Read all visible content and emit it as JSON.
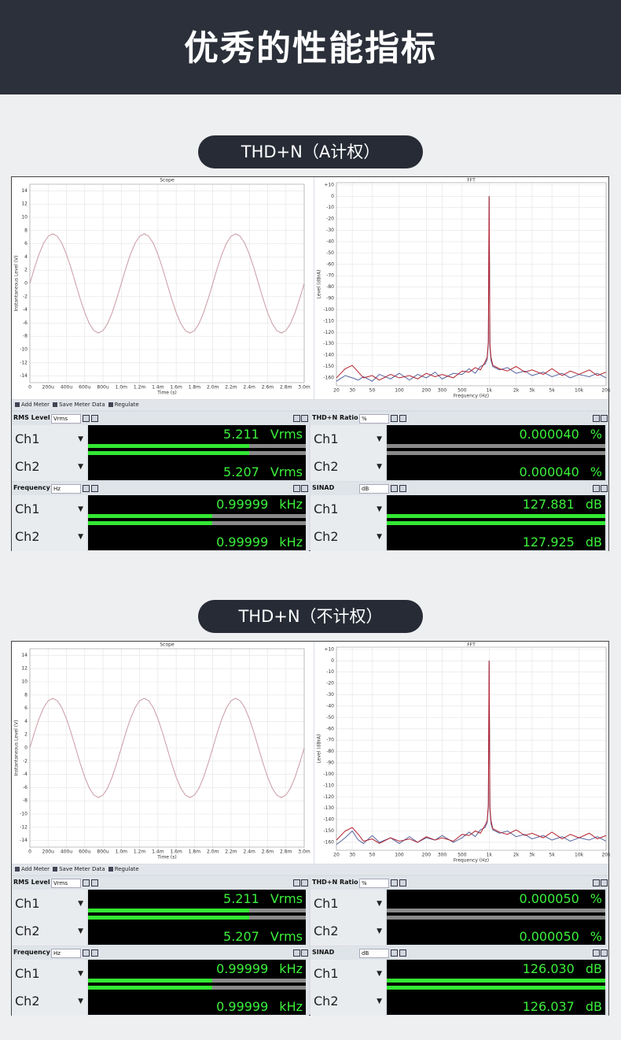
{
  "header": {
    "title": "优秀的性能指标"
  },
  "sections": [
    {
      "badge": "THD+N（A计权）",
      "scope": {
        "title": "Scope",
        "x_label": "Time (s)",
        "y_label": "Instantaneous Level (V)",
        "grid": true,
        "color": "#c99aa3",
        "xlim": [
          0,
          0.003
        ],
        "ylim": [
          -15,
          15
        ],
        "yticks": [
          14,
          12,
          10,
          8,
          6,
          4,
          2,
          0,
          -2,
          -4,
          -6,
          -8,
          -10,
          -12,
          -14
        ],
        "xticks": [
          0,
          {
            "value": 0.0002,
            "label": "200u"
          },
          {
            "value": 0.0004,
            "label": "400u"
          },
          {
            "value": 0.0006,
            "label": "600u"
          },
          {
            "value": 0.0008,
            "label": "800u"
          },
          {
            "value": 0.001,
            "label": "1.0m"
          },
          {
            "value": 0.0012,
            "label": "1.2m"
          },
          {
            "value": 0.0014,
            "label": "1.4m"
          },
          {
            "value": 0.0016,
            "label": "1.6m"
          },
          {
            "value": 0.0018,
            "label": "1.8m"
          },
          {
            "value": 0.002,
            "label": "2.0m"
          },
          {
            "value": 0.0022,
            "label": "2.2m"
          },
          {
            "value": 0.0024,
            "label": "2.4m"
          },
          {
            "value": 0.0026,
            "label": "2.6m"
          },
          {
            "value": 0.0028,
            "label": "2.8m"
          },
          {
            "value": 0.003,
            "label": "3.0m"
          }
        ],
        "x": [
          0,
          5e-05,
          0.0001,
          0.00015,
          0.0002,
          0.00025,
          0.0003,
          0.00035,
          0.0004,
          0.00045,
          0.0005,
          0.00055,
          0.0006,
          0.00065,
          0.0007,
          0.00075,
          0.0008,
          0.00085,
          0.0009,
          0.00095,
          0.001,
          0.00105,
          0.0011,
          0.00115,
          0.0012,
          0.00125,
          0.0013,
          0.00135,
          0.0014,
          0.00145,
          0.0015,
          0.00155,
          0.0016,
          0.00165,
          0.0017,
          0.00175,
          0.0018,
          0.00185,
          0.0019,
          0.00195,
          0.002,
          0.00205,
          0.0021,
          0.00215,
          0.0022,
          0.00225,
          0.0023,
          0.00235,
          0.0024,
          0.00245,
          0.0025,
          0.00255,
          0.0026,
          0.00265,
          0.0027,
          0.00275,
          0.0028,
          0.00285,
          0.0029,
          0.00295,
          0.003
        ],
        "values": [
          0,
          2.32,
          4.41,
          6.07,
          7.13,
          7.5,
          7.13,
          6.07,
          4.41,
          2.32,
          0,
          -2.32,
          -4.41,
          -6.07,
          -7.13,
          -7.5,
          -7.13,
          -6.07,
          -4.41,
          -2.32,
          0,
          2.32,
          4.41,
          6.07,
          7.13,
          7.5,
          7.13,
          6.07,
          4.41,
          2.32,
          0,
          -2.32,
          -4.41,
          -6.07,
          -7.13,
          -7.5,
          -7.13,
          -6.07,
          -4.41,
          -2.32,
          0,
          2.32,
          4.41,
          6.07,
          7.13,
          7.5,
          7.13,
          6.07,
          4.41,
          2.32,
          0,
          -2.32,
          -4.41,
          -6.07,
          -7.13,
          -7.5,
          -7.13,
          -6.07,
          -4.41,
          -2.32,
          0
        ]
      },
      "fft": {
        "title": "FFT",
        "x_label": "Frequency (Hz)",
        "y_label": "Level (dBrA)",
        "grid": true,
        "log_x": true,
        "xlim": [
          20,
          20000
        ],
        "ylim": [
          -167,
          12
        ],
        "yticks": [
          {
            "value": 10,
            "label": "+10"
          },
          0,
          -10,
          -20,
          -30,
          -40,
          -50,
          -60,
          -70,
          -80,
          -90,
          -100,
          -110,
          -120,
          -130,
          -140,
          -150,
          -160
        ],
        "xticks": [
          20,
          30,
          50,
          100,
          200,
          300,
          500,
          {
            "value": 1000,
            "label": "1k"
          },
          {
            "value": 2000,
            "label": "2k"
          },
          {
            "value": 3000,
            "label": "3k"
          },
          {
            "value": 5000,
            "label": "5k"
          },
          {
            "value": 10000,
            "label": "10k"
          },
          {
            "value": 20000,
            "label": "20k"
          }
        ],
        "x": [
          20,
          25,
          30,
          35,
          40,
          50,
          60,
          80,
          100,
          130,
          160,
          200,
          250,
          300,
          400,
          500,
          600,
          700,
          800,
          900,
          950,
          980,
          1000,
          1020,
          1050,
          1100,
          1300,
          1600,
          2000,
          2500,
          3000,
          4000,
          5000,
          6500,
          8000,
          10000,
          13000,
          16000,
          20000
        ],
        "series": [
          {
            "color": "#5565a0",
            "values": [
              -163,
              -158,
              -160,
              -162,
              -159,
              -163,
              -157,
              -161,
              -156,
              -162,
              -157,
              -160,
              -155,
              -161,
              -156,
              -157,
              -152,
              -156,
              -150,
              -148,
              -144,
              -130,
              0,
              -132,
              -145,
              -150,
              -153,
              -151,
              -156,
              -154,
              -158,
              -155,
              -159,
              -156,
              -160,
              -157,
              -159,
              -156,
              -160
            ]
          },
          {
            "color": "#b3212e",
            "values": [
              -160,
              -152,
              -149,
              -155,
              -160,
              -158,
              -162,
              -157,
              -160,
              -158,
              -161,
              -156,
              -159,
              -157,
              -160,
              -154,
              -155,
              -151,
              -153,
              -146,
              -142,
              -128,
              0,
              -130,
              -142,
              -149,
              -152,
              -154,
              -150,
              -155,
              -153,
              -157,
              -152,
              -158,
              -154,
              -157,
              -153,
              -158,
              -155
            ]
          }
        ]
      },
      "toolbar": [
        "Add Meter",
        "Save Meter Data",
        "Regulate"
      ],
      "meters": [
        {
          "name": "RMS Level",
          "unit_select": "Vrms",
          "channels": [
            "Ch1",
            "Ch2"
          ],
          "readings": [
            "5.211",
            "5.207"
          ],
          "unit": "Vrms"
        },
        {
          "name": "THD+N Ratio",
          "unit_select": "%",
          "channels": [
            "Ch1",
            "Ch2"
          ],
          "readings": [
            "0.000040",
            "0.000040"
          ],
          "unit": "%"
        },
        {
          "name": "Frequency",
          "unit_select": "Hz",
          "channels": [
            "Ch1",
            "Ch2"
          ],
          "readings": [
            "0.99999",
            "0.99999"
          ],
          "unit": "kHz"
        },
        {
          "name": "SINAD",
          "unit_select": "dB",
          "channels": [
            "Ch1",
            "Ch2"
          ],
          "readings": [
            "127.881",
            "127.925"
          ],
          "unit": "dB"
        }
      ]
    },
    {
      "badge": "THD+N（不计权）",
      "scope": {
        "title": "Scope",
        "x_label": "Time (s)",
        "y_label": "Instantaneous Level (V)",
        "grid": true,
        "color": "#c99aa3",
        "xlim": [
          0,
          0.003
        ],
        "ylim": [
          -15,
          15
        ],
        "yticks": [
          14,
          12,
          10,
          8,
          6,
          4,
          2,
          0,
          -2,
          -4,
          -6,
          -8,
          -10,
          -12,
          -14
        ],
        "xticks": [
          0,
          {
            "value": 0.0002,
            "label": "200u"
          },
          {
            "value": 0.0004,
            "label": "400u"
          },
          {
            "value": 0.0006,
            "label": "600u"
          },
          {
            "value": 0.0008,
            "label": "800u"
          },
          {
            "value": 0.001,
            "label": "1.0m"
          },
          {
            "value": 0.0012,
            "label": "1.2m"
          },
          {
            "value": 0.0014,
            "label": "1.4m"
          },
          {
            "value": 0.0016,
            "label": "1.6m"
          },
          {
            "value": 0.0018,
            "label": "1.8m"
          },
          {
            "value": 0.002,
            "label": "2.0m"
          },
          {
            "value": 0.0022,
            "label": "2.2m"
          },
          {
            "value": 0.0024,
            "label": "2.4m"
          },
          {
            "value": 0.0026,
            "label": "2.6m"
          },
          {
            "value": 0.0028,
            "label": "2.8m"
          },
          {
            "value": 0.003,
            "label": "3.0m"
          }
        ],
        "x": [
          0,
          5e-05,
          0.0001,
          0.00015,
          0.0002,
          0.00025,
          0.0003,
          0.00035,
          0.0004,
          0.00045,
          0.0005,
          0.00055,
          0.0006,
          0.00065,
          0.0007,
          0.00075,
          0.0008,
          0.00085,
          0.0009,
          0.00095,
          0.001,
          0.00105,
          0.0011,
          0.00115,
          0.0012,
          0.00125,
          0.0013,
          0.00135,
          0.0014,
          0.00145,
          0.0015,
          0.00155,
          0.0016,
          0.00165,
          0.0017,
          0.00175,
          0.0018,
          0.00185,
          0.0019,
          0.00195,
          0.002,
          0.00205,
          0.0021,
          0.00215,
          0.0022,
          0.00225,
          0.0023,
          0.00235,
          0.0024,
          0.00245,
          0.0025,
          0.00255,
          0.0026,
          0.00265,
          0.0027,
          0.00275,
          0.0028,
          0.00285,
          0.0029,
          0.00295,
          0.003
        ],
        "values": [
          0,
          2.32,
          4.41,
          6.07,
          7.13,
          7.5,
          7.13,
          6.07,
          4.41,
          2.32,
          0,
          -2.32,
          -4.41,
          -6.07,
          -7.13,
          -7.5,
          -7.13,
          -6.07,
          -4.41,
          -2.32,
          0,
          2.32,
          4.41,
          6.07,
          7.13,
          7.5,
          7.13,
          6.07,
          4.41,
          2.32,
          0,
          -2.32,
          -4.41,
          -6.07,
          -7.13,
          -7.5,
          -7.13,
          -6.07,
          -4.41,
          -2.32,
          0,
          2.32,
          4.41,
          6.07,
          7.13,
          7.5,
          7.13,
          6.07,
          4.41,
          2.32,
          0,
          -2.32,
          -4.41,
          -6.07,
          -7.13,
          -7.5,
          -7.13,
          -6.07,
          -4.41,
          -2.32,
          0
        ]
      },
      "fft": {
        "title": "FFT",
        "x_label": "Frequency (Hz)",
        "y_label": "Level (dBrA)",
        "grid": true,
        "log_x": true,
        "xlim": [
          20,
          20000
        ],
        "ylim": [
          -167,
          12
        ],
        "yticks": [
          {
            "value": 10,
            "label": "+10"
          },
          0,
          -10,
          -20,
          -30,
          -40,
          -50,
          -60,
          -70,
          -80,
          -90,
          -100,
          -110,
          -120,
          -130,
          -140,
          -150,
          -160
        ],
        "xticks": [
          20,
          30,
          50,
          100,
          200,
          300,
          500,
          {
            "value": 1000,
            "label": "1k"
          },
          {
            "value": 2000,
            "label": "2k"
          },
          {
            "value": 3000,
            "label": "3k"
          },
          {
            "value": 5000,
            "label": "5k"
          },
          {
            "value": 10000,
            "label": "10k"
          },
          {
            "value": 20000,
            "label": "20k"
          }
        ],
        "x": [
          20,
          25,
          30,
          35,
          40,
          50,
          60,
          80,
          100,
          130,
          160,
          200,
          250,
          300,
          400,
          500,
          600,
          700,
          800,
          900,
          950,
          980,
          1000,
          1020,
          1050,
          1100,
          1300,
          1600,
          2000,
          2500,
          3000,
          4000,
          5000,
          6500,
          8000,
          10000,
          13000,
          16000,
          20000
        ],
        "series": [
          {
            "color": "#5565a0",
            "values": [
              -162,
              -156,
              -150,
              -158,
              -161,
              -154,
              -160,
              -156,
              -161,
              -155,
              -160,
              -156,
              -158,
              -154,
              -160,
              -156,
              -151,
              -155,
              -149,
              -147,
              -143,
              -129,
              0,
              -131,
              -144,
              -149,
              -152,
              -150,
              -155,
              -153,
              -157,
              -154,
              -158,
              -155,
              -159,
              -156,
              -158,
              -155,
              -159
            ]
          },
          {
            "color": "#b3212e",
            "values": [
              -158,
              -150,
              -147,
              -153,
              -159,
              -157,
              -161,
              -156,
              -159,
              -157,
              -160,
              -155,
              -158,
              -156,
              -159,
              -153,
              -154,
              -150,
              -152,
              -145,
              -141,
              -127,
              0,
              -129,
              -141,
              -148,
              -151,
              -153,
              -149,
              -154,
              -152,
              -156,
              -151,
              -157,
              -153,
              -156,
              -152,
              -157,
              -154
            ]
          }
        ]
      },
      "toolbar": [
        "Add Meter",
        "Save Meter Data",
        "Regulate"
      ],
      "meters": [
        {
          "name": "RMS Level",
          "unit_select": "Vrms",
          "channels": [
            "Ch1",
            "Ch2"
          ],
          "readings": [
            "5.211",
            "5.207"
          ],
          "unit": "Vrms"
        },
        {
          "name": "THD+N Ratio",
          "unit_select": "%",
          "channels": [
            "Ch1",
            "Ch2"
          ],
          "readings": [
            "0.000050",
            "0.000050"
          ],
          "unit": "%"
        },
        {
          "name": "Frequency",
          "unit_select": "Hz",
          "channels": [
            "Ch1",
            "Ch2"
          ],
          "readings": [
            "0.99999",
            "0.99999"
          ],
          "unit": "kHz"
        },
        {
          "name": "SINAD",
          "unit_select": "dB",
          "channels": [
            "Ch1",
            "Ch2"
          ],
          "readings": [
            "126.030",
            "126.037"
          ],
          "unit": "dB"
        }
      ]
    }
  ]
}
